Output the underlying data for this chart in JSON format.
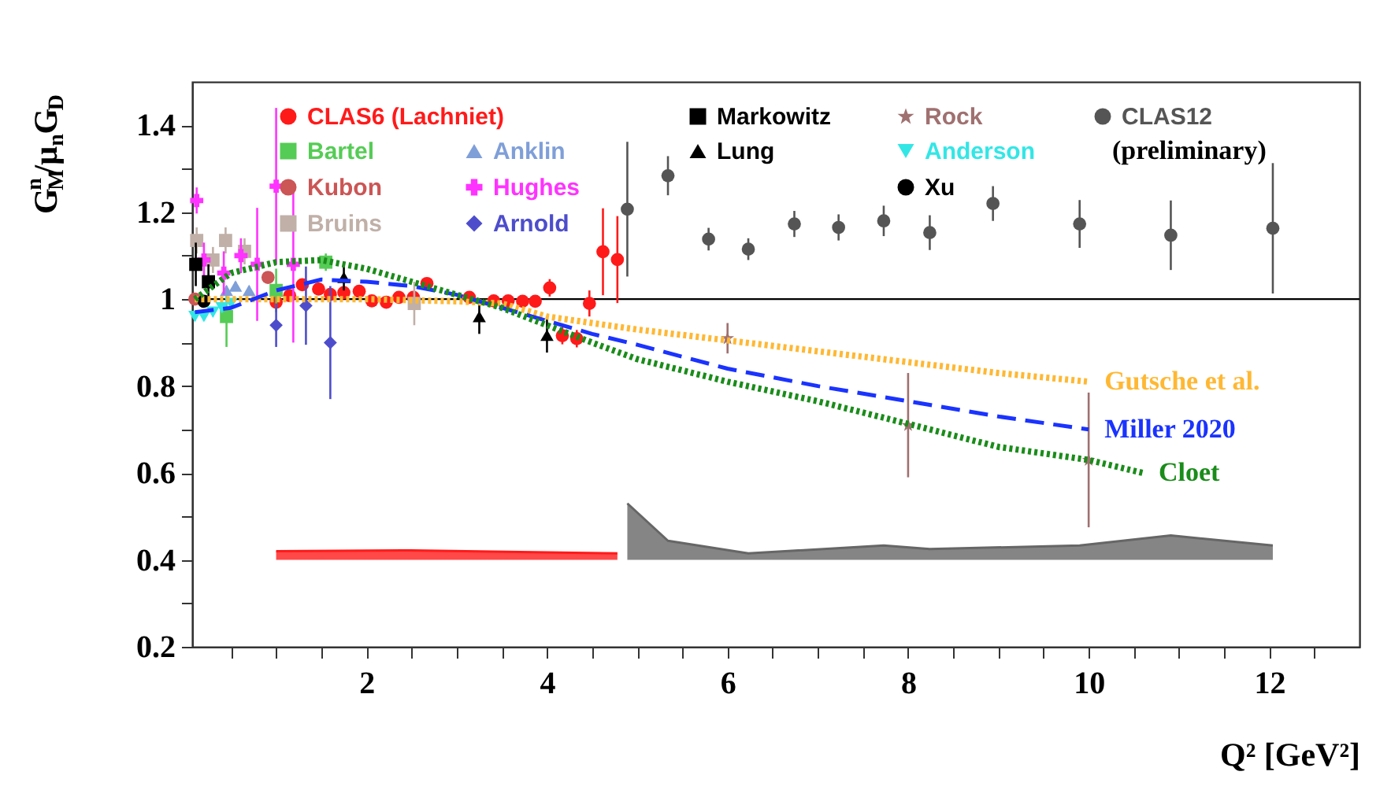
{
  "chart_data": {
    "type": "scatter",
    "xlabel": "Q² [GeV²]",
    "ylabel": "G$^{n}$$_{M}$/μ$_{n}$G$_{D}$",
    "xlim": [
      0.07,
      13
    ],
    "ylim": [
      0.2,
      1.5
    ],
    "xticks": [
      {
        "value": 0.5,
        "label": null
      },
      {
        "value": 1,
        "label": null
      },
      {
        "value": 1.5,
        "label": null
      },
      2,
      {
        "value": 2.5,
        "label": null
      },
      {
        "value": 3,
        "label": null
      },
      {
        "value": 3.5,
        "label": null
      },
      4,
      {
        "value": 4.5,
        "label": null
      },
      {
        "value": 5,
        "label": null
      },
      {
        "value": 5.5,
        "label": null
      },
      6,
      {
        "value": 6.5,
        "label": null
      },
      {
        "value": 7,
        "label": null
      },
      {
        "value": 7.5,
        "label": null
      },
      8,
      {
        "value": 8.5,
        "label": null
      },
      {
        "value": 9,
        "label": null
      },
      {
        "value": 9.5,
        "label": null
      },
      10,
      {
        "value": 10.5,
        "label": null
      },
      {
        "value": 11,
        "label": null
      },
      {
        "value": 11.5,
        "label": null
      },
      12,
      {
        "value": 12.5,
        "label": null
      }
    ],
    "yticks": [
      0.2,
      {
        "value": 0.3,
        "label": null
      },
      0.4,
      {
        "value": 0.5,
        "label": null
      },
      0.6,
      {
        "value": 0.7,
        "label": null
      },
      0.8,
      {
        "value": 0.9,
        "label": null
      },
      1,
      {
        "value": 1.1,
        "label": null
      },
      1.2,
      {
        "value": 1.3,
        "label": null
      },
      1.4
    ],
    "grid": false,
    "legend": "top",
    "ref_lines": [
      {
        "axis": "y",
        "value": 1,
        "color": "#000000"
      }
    ],
    "annotations": [
      "(preliminary)"
    ],
    "series": [
      {
        "name": "CLAS6 (Lachniet)",
        "marker": "circle",
        "color": "#ff1a1a",
        "x": [
          1.0,
          1.15,
          1.29,
          1.47,
          1.6,
          1.75,
          1.92,
          2.06,
          2.22,
          2.36,
          2.52,
          2.67,
          3.14,
          3.41,
          3.57,
          3.73,
          3.87,
          4.03,
          4.17,
          4.33,
          4.47,
          4.62,
          4.78
        ],
        "values": [
          0.993,
          1.008,
          1.033,
          1.023,
          1.011,
          1.015,
          1.018,
          0.996,
          0.993,
          1.004,
          1.004,
          1.036,
          1.004,
          0.996,
          0.996,
          0.995,
          0.995,
          1.026,
          0.916,
          0.909,
          0.99,
          1.109,
          1.091
        ],
        "errors": [
          0.01,
          0.01,
          0.01,
          0.01,
          0.01,
          0.01,
          0.01,
          0.01,
          0.01,
          0.01,
          0.01,
          0.01,
          0.01,
          0.01,
          0.01,
          0.01,
          0.01,
          0.02,
          0.02,
          0.02,
          0.03,
          0.1,
          0.1
        ]
      },
      {
        "name": "Bartel",
        "marker": "square",
        "color": "#55cc55",
        "x": [
          0.45,
          1.0,
          1.55
        ],
        "values": [
          0.96,
          1.02,
          1.085
        ],
        "errors": [
          0.07,
          0.05,
          0.02
        ]
      },
      {
        "name": "Kubon",
        "marker": "circle",
        "color": "#cc5555",
        "x": [
          0.1,
          0.91
        ],
        "values": [
          1.0,
          1.05
        ]
      },
      {
        "name": "Bruins",
        "marker": "square",
        "color": "#c0b0a8",
        "x": [
          0.12,
          0.3,
          0.44,
          0.65,
          2.53
        ],
        "values": [
          1.135,
          1.09,
          1.135,
          1.11,
          0.99
        ],
        "errors": [
          0.03,
          0.03,
          0.03,
          0.03,
          0.05
        ]
      },
      {
        "name": "Anklin",
        "marker": "triangle",
        "color": "#7f9fd8",
        "x": [
          0.45,
          0.55,
          0.7
        ],
        "values": [
          1.02,
          1.03,
          1.02
        ],
        "errors": [
          0.01,
          0.01,
          0.01
        ]
      },
      {
        "name": "Hughes",
        "marker": "cross",
        "color": "#ff33ff",
        "x": [
          0.12,
          0.2,
          0.42,
          0.61,
          0.79,
          1.0,
          1.19
        ],
        "values": [
          1.227,
          1.09,
          1.06,
          1.1,
          1.08,
          1.26,
          1.08
        ],
        "errors": [
          0.03,
          0.04,
          0.05,
          0.04,
          0.13,
          0.18,
          0.18
        ]
      },
      {
        "name": "Arnold",
        "marker": "diamond",
        "color": "#4d4dcc",
        "x": [
          1.0,
          1.33,
          1.6
        ],
        "values": [
          0.94,
          0.985,
          0.9
        ],
        "errors": [
          0.05,
          0.09,
          0.13
        ]
      },
      {
        "name": "Markowitz",
        "marker": "square",
        "color": "#000000",
        "x": [
          0.11,
          0.25
        ],
        "values": [
          1.08,
          1.04
        ],
        "errors": [
          0.05,
          0.04
        ]
      },
      {
        "name": "Lung",
        "marker": "triangle",
        "color": "#000000",
        "x": [
          1.75,
          3.25,
          4.0
        ],
        "values": [
          1.05,
          0.96,
          0.917
        ],
        "errors": [
          0.03,
          0.04,
          0.04
        ]
      },
      {
        "name": "Rock",
        "marker": "star",
        "color": "#a07070",
        "x": [
          6.0,
          8.0,
          10.0
        ],
        "values": [
          0.91,
          0.71,
          0.63
        ],
        "errors": [
          0.035,
          0.12,
          0.155
        ]
      },
      {
        "name": "Anderson",
        "marker": "triangle-down",
        "color": "#33e6e6",
        "x": [
          0.1,
          0.2,
          0.3,
          0.4,
          0.5
        ],
        "values": [
          0.96,
          0.96,
          0.97,
          0.98,
          0.99
        ],
        "errors": [
          0.01,
          0.01,
          0.01,
          0.01,
          0.01
        ]
      },
      {
        "name": "Xu",
        "marker": "circle",
        "color": "#000000",
        "x": [
          0.2
        ],
        "values": [
          0.995
        ]
      },
      {
        "name": "CLAS12",
        "marker": "circle",
        "color": "#555555",
        "x": [
          4.89,
          5.34,
          5.79,
          6.23,
          6.74,
          7.23,
          7.73,
          8.24,
          8.94,
          9.9,
          10.91,
          12.04
        ],
        "values": [
          1.207,
          1.284,
          1.138,
          1.115,
          1.173,
          1.165,
          1.18,
          1.153,
          1.22,
          1.173,
          1.147,
          1.163
        ],
        "errors": [
          0.155,
          0.045,
          0.026,
          0.025,
          0.03,
          0.03,
          0.035,
          0.04,
          0.04,
          0.055,
          0.08,
          0.15
        ]
      },
      {
        "name": "Gutsche et al.",
        "type": "line",
        "line_style": "dotted",
        "color": "#ffb833",
        "x": [
          0.1,
          1,
          2,
          3,
          3.5,
          4,
          4.5,
          5,
          6,
          7,
          8,
          9,
          10
        ],
        "values": [
          1.0,
          1.0,
          1.0,
          0.995,
          0.99,
          0.96,
          0.945,
          0.93,
          0.905,
          0.88,
          0.855,
          0.83,
          0.81
        ]
      },
      {
        "name": "Miller 2020",
        "type": "line",
        "line_style": "dashed",
        "color": "#1a33ff",
        "x": [
          0.1,
          0.5,
          1,
          1.5,
          2,
          2.5,
          3,
          3.5,
          4,
          4.5,
          5,
          6,
          7,
          8,
          9,
          10
        ],
        "values": [
          0.97,
          0.98,
          1.02,
          1.045,
          1.04,
          1.03,
          1.01,
          0.98,
          0.95,
          0.92,
          0.895,
          0.84,
          0.8,
          0.765,
          0.73,
          0.7
        ]
      },
      {
        "name": "Cloet",
        "type": "line",
        "line_style": "dotted",
        "color": "#1a8c1a",
        "x": [
          0.1,
          0.5,
          1,
          1.5,
          2,
          2.5,
          3,
          3.5,
          4,
          4.5,
          5,
          6,
          7,
          8,
          9,
          10,
          10.6
        ],
        "values": [
          1.0,
          1.06,
          1.085,
          1.09,
          1.07,
          1.04,
          1.01,
          0.98,
          0.94,
          0.9,
          0.862,
          0.81,
          0.765,
          0.713,
          0.66,
          0.63,
          0.6
        ]
      },
      {
        "type": "line",
        "line_style": "solid",
        "color": "#ff1a1a",
        "x": [
          1.0,
          2.5,
          4.78
        ],
        "values": [
          0.42,
          0.422,
          0.415
        ],
        "lower": [
          0.4,
          0.4,
          0.4
        ],
        "upper": [
          0.42,
          0.422,
          0.415
        ]
      },
      {
        "type": "line",
        "line_style": "solid",
        "color": "#666666",
        "x": [
          4.89,
          5.34,
          6.23,
          7.73,
          8.24,
          9.9,
          10.91,
          12.04
        ],
        "values": [
          0.53,
          0.444,
          0.415,
          0.433,
          0.425,
          0.433,
          0.456,
          0.433
        ],
        "lower": [
          0.4,
          0.4,
          0.4,
          0.4,
          0.4,
          0.4,
          0.4,
          0.4
        ],
        "upper": [
          0.53,
          0.444,
          0.415,
          0.433,
          0.425,
          0.433,
          0.456,
          0.433
        ]
      }
    ]
  }
}
